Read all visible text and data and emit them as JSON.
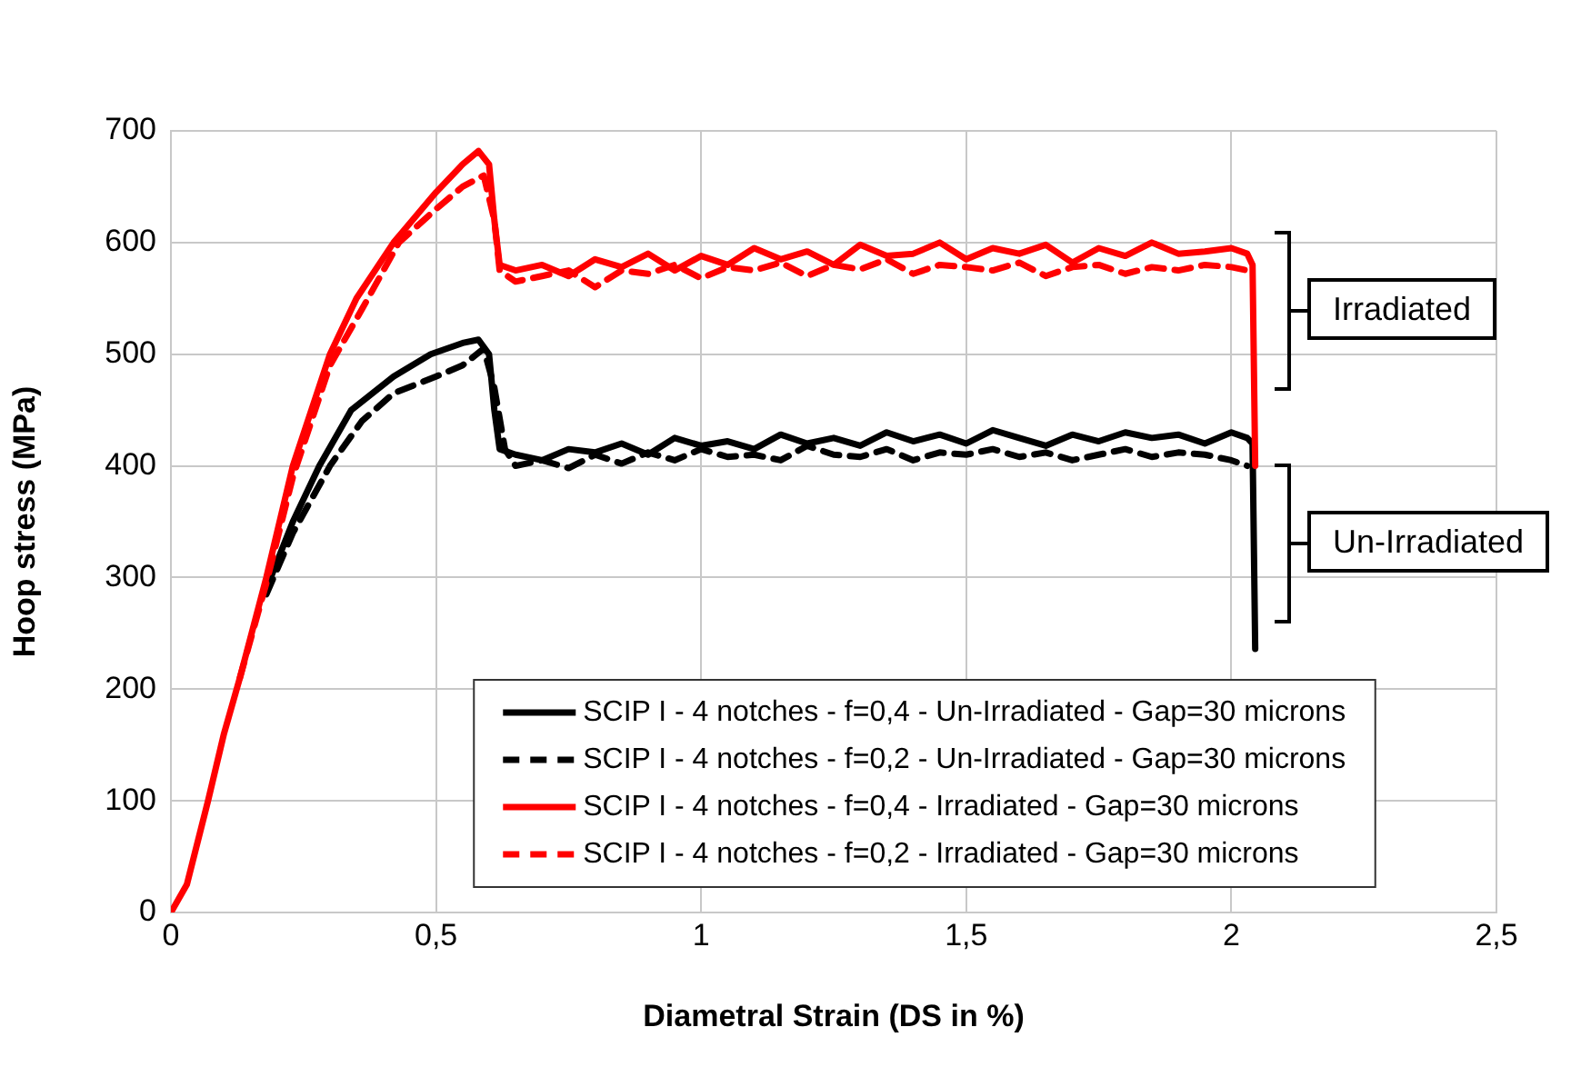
{
  "chart_data": {
    "type": "line",
    "xlabel": "Diametral Strain (DS in %)",
    "ylabel": "Hoop stress (MPa)",
    "xlim": [
      0,
      2.5
    ],
    "xticks": [
      0,
      {
        "value": 0.5,
        "label": "0,5"
      },
      1,
      {
        "value": 1.5,
        "label": "1,5"
      },
      2,
      {
        "value": 2.5,
        "label": "2,5"
      }
    ],
    "ylim": [
      0,
      700
    ],
    "yticks": [
      0,
      100,
      200,
      300,
      400,
      500,
      600,
      700
    ],
    "grid": true,
    "legend": "bottom",
    "marker": "none",
    "annotations": [
      "Irradiated",
      "Un-Irradiated"
    ],
    "series": [
      {
        "name": "SCIP I - 4 notches - f=0,4 - Un-Irradiated - Gap=30 microns",
        "color": "#000000",
        "line_style": "solid",
        "x": [
          0.18,
          0.23,
          0.28,
          0.34,
          0.42,
          0.49,
          0.55,
          0.58,
          0.6,
          0.61,
          0.62,
          0.65,
          0.7,
          0.75,
          0.8,
          0.85,
          0.9,
          0.95,
          1.0,
          1.05,
          1.1,
          1.15,
          1.2,
          1.25,
          1.3,
          1.35,
          1.4,
          1.45,
          1.5,
          1.55,
          1.6,
          1.65,
          1.7,
          1.75,
          1.8,
          1.85,
          1.9,
          1.95,
          2.0,
          2.03,
          2.04,
          2.045
        ],
        "values": [
          290,
          350,
          400,
          450,
          480,
          500,
          510,
          513,
          500,
          450,
          415,
          410,
          405,
          415,
          412,
          420,
          410,
          425,
          418,
          422,
          415,
          428,
          420,
          425,
          418,
          430,
          422,
          428,
          420,
          432,
          425,
          418,
          428,
          422,
          430,
          425,
          428,
          420,
          430,
          425,
          420,
          236
        ]
      },
      {
        "name": "SCIP I - 4 notches - f=0,2 - Un-Irradiated - Gap=30 microns",
        "color": "#000000",
        "line_style": "dashed",
        "x": [
          0.18,
          0.23,
          0.3,
          0.36,
          0.42,
          0.5,
          0.55,
          0.59,
          0.61,
          0.63,
          0.65,
          0.7,
          0.75,
          0.8,
          0.85,
          0.9,
          0.95,
          1.0,
          1.05,
          1.1,
          1.15,
          1.2,
          1.25,
          1.3,
          1.35,
          1.4,
          1.45,
          1.5,
          1.55,
          1.6,
          1.65,
          1.7,
          1.75,
          1.8,
          1.85,
          1.9,
          1.95,
          2.0,
          2.03
        ],
        "values": [
          285,
          340,
          400,
          440,
          465,
          480,
          490,
          505,
          470,
          415,
          400,
          405,
          398,
          410,
          402,
          412,
          405,
          415,
          408,
          410,
          405,
          418,
          410,
          408,
          415,
          405,
          412,
          410,
          415,
          408,
          412,
          405,
          410,
          415,
          408,
          412,
          410,
          405,
          400
        ]
      },
      {
        "name": "SCIP I - 4 notches - f=0,4 - Irradiated - Gap=30 microns",
        "color": "#ff0000",
        "line_style": "solid",
        "x": [
          0,
          0.03,
          0.07,
          0.1,
          0.13,
          0.18,
          0.23,
          0.3,
          0.35,
          0.42,
          0.5,
          0.55,
          0.58,
          0.6,
          0.61,
          0.62,
          0.65,
          0.7,
          0.75,
          0.8,
          0.85,
          0.9,
          0.95,
          1.0,
          1.05,
          1.1,
          1.15,
          1.2,
          1.25,
          1.3,
          1.35,
          1.4,
          1.45,
          1.5,
          1.55,
          1.6,
          1.65,
          1.7,
          1.75,
          1.8,
          1.85,
          1.9,
          1.95,
          2.0,
          2.03,
          2.04,
          2.045
        ],
        "values": [
          0,
          25,
          100,
          160,
          210,
          300,
          400,
          500,
          550,
          600,
          645,
          670,
          682,
          670,
          620,
          580,
          575,
          580,
          570,
          585,
          578,
          590,
          575,
          588,
          580,
          595,
          585,
          592,
          580,
          598,
          588,
          590,
          600,
          585,
          595,
          590,
          598,
          582,
          595,
          588,
          600,
          590,
          592,
          595,
          590,
          580,
          400
        ]
      },
      {
        "name": "SCIP I - 4 notches - f=0,2 - Irradiated - Gap=30 microns",
        "color": "#ff0000",
        "line_style": "dashed",
        "x": [
          0.13,
          0.18,
          0.23,
          0.3,
          0.36,
          0.43,
          0.5,
          0.55,
          0.59,
          0.61,
          0.62,
          0.65,
          0.7,
          0.75,
          0.8,
          0.85,
          0.9,
          0.95,
          1.0,
          1.05,
          1.1,
          1.15,
          1.2,
          1.25,
          1.3,
          1.35,
          1.4,
          1.45,
          1.5,
          1.55,
          1.6,
          1.65,
          1.7,
          1.75,
          1.8,
          1.85,
          1.9,
          1.95,
          2.0,
          2.03
        ],
        "values": [
          210,
          295,
          390,
          490,
          540,
          600,
          630,
          650,
          660,
          620,
          575,
          565,
          570,
          575,
          560,
          575,
          572,
          580,
          568,
          578,
          575,
          582,
          570,
          580,
          576,
          585,
          572,
          580,
          578,
          575,
          582,
          570,
          578,
          580,
          572,
          578,
          575,
          580,
          578,
          575
        ]
      }
    ]
  }
}
